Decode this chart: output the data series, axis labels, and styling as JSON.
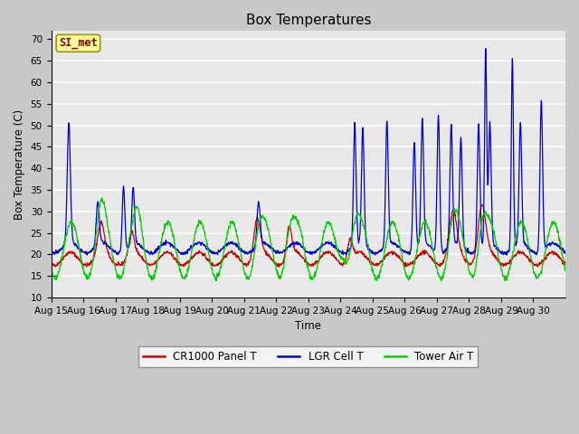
{
  "title": "Box Temperatures",
  "xlabel": "Time",
  "ylabel": "Box Temperature (C)",
  "ylim": [
    10,
    72
  ],
  "yticks": [
    10,
    15,
    20,
    25,
    30,
    35,
    40,
    45,
    50,
    55,
    60,
    65,
    70
  ],
  "fig_bg_color": "#c8c8c8",
  "plot_bg_color": "#e8e8e8",
  "grid_color": "#ffffff",
  "line_colors": {
    "panel": "#cc0000",
    "lgr": "#0000cc",
    "tower": "#00cc00"
  },
  "legend_labels": [
    "CR1000 Panel T",
    "LGR Cell T",
    "Tower Air T"
  ],
  "watermark": "SI_met",
  "watermark_color": "#8b0000",
  "watermark_bg": "#ffff99",
  "watermark_border": "#999900",
  "x_tick_labels": [
    "Aug 15",
    "Aug 16",
    "Aug 17",
    "Aug 18",
    "Aug 19",
    "Aug 20",
    "Aug 21",
    "Aug 22",
    "Aug 23",
    "Aug 24",
    "Aug 25",
    "Aug 26",
    "Aug 27",
    "Aug 28",
    "Aug 29",
    "Aug 30"
  ],
  "n_points": 1600
}
